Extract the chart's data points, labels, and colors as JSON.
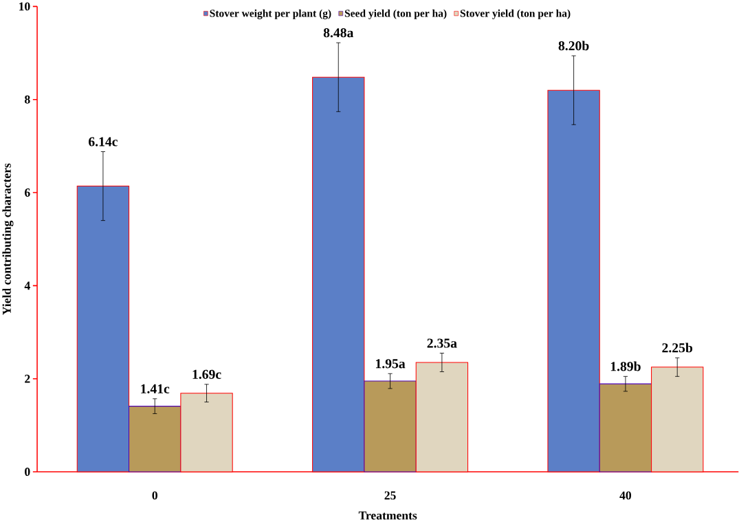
{
  "chart_data": {
    "type": "bar",
    "xlabel": "Treatments",
    "ylabel": "Yield contributing characters",
    "categories": [
      "0",
      "25",
      "40"
    ],
    "series": [
      {
        "name": "Stover weight per plant (g)",
        "color": "#5b7fc7",
        "values": [
          6.14,
          8.48,
          8.2
        ],
        "errors": [
          0.74,
          0.74,
          0.74
        ],
        "value_labels": [
          "6.14c",
          "8.48a",
          "8.20b"
        ]
      },
      {
        "name": "Seed yield  (ton per ha)",
        "color": "#b89a5a",
        "values": [
          1.41,
          1.95,
          1.89
        ],
        "errors": [
          0.16,
          0.16,
          0.16
        ],
        "value_labels": [
          "1.41c",
          "1.95a",
          "1.89b"
        ]
      },
      {
        "name": "Stover yield  (ton per ha)",
        "color": "#e0d6bf",
        "values": [
          1.69,
          2.35,
          2.25
        ],
        "errors": [
          0.19,
          0.2,
          0.2
        ],
        "value_labels": [
          "1.69c",
          "2.35a",
          "2.25b"
        ]
      }
    ],
    "ylim": [
      0,
      10
    ],
    "yticks": [
      0,
      2,
      4,
      6,
      8,
      10
    ],
    "grid": false,
    "legend": "top"
  }
}
